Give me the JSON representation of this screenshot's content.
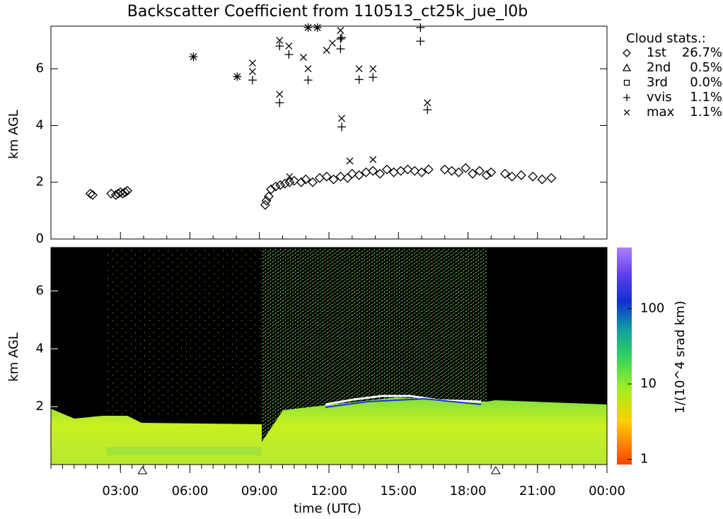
{
  "chart_data": [
    {
      "type": "scatter",
      "title": "Backscatter Coefficient from 110513_ct25k_jue_l0b",
      "ylabel": "km AGL",
      "xlim": [
        0,
        24
      ],
      "ylim": [
        0,
        7.5
      ],
      "yticks": [
        0,
        2,
        4,
        6
      ],
      "legend_title": "Cloud stats.:",
      "legend": "right",
      "series": [
        {
          "name": "1st",
          "stat": "26.7%",
          "marker": "diamond",
          "color": "#000000",
          "x": [
            1.7,
            1.8,
            2.6,
            2.8,
            2.9,
            3.0,
            3.1,
            3.2,
            3.3,
            9.25,
            9.3,
            9.4,
            9.5,
            9.7,
            9.9,
            10.1,
            10.3,
            10.5,
            10.8,
            11.0,
            11.3,
            11.6,
            11.9,
            12.2,
            12.5,
            12.8,
            13.0,
            13.3,
            13.6,
            13.9,
            14.2,
            14.5,
            14.8,
            15.1,
            15.4,
            15.7,
            16.0,
            16.3,
            17.0,
            17.3,
            17.6,
            17.9,
            18.2,
            18.5,
            18.8,
            19.0,
            19.6,
            19.9,
            20.3,
            20.8,
            21.2,
            21.6
          ],
          "values": [
            1.6,
            1.55,
            1.6,
            1.55,
            1.6,
            1.65,
            1.6,
            1.65,
            1.7,
            1.2,
            1.35,
            1.5,
            1.75,
            1.85,
            1.9,
            1.95,
            2.0,
            2.05,
            2.0,
            2.1,
            2.0,
            2.15,
            2.2,
            2.1,
            2.2,
            2.15,
            2.3,
            2.25,
            2.35,
            2.4,
            2.3,
            2.45,
            2.35,
            2.4,
            2.45,
            2.4,
            2.35,
            2.45,
            2.45,
            2.4,
            2.35,
            2.5,
            2.3,
            2.4,
            2.25,
            2.35,
            2.3,
            2.2,
            2.25,
            2.2,
            2.1,
            2.15
          ]
        },
        {
          "name": "2nd",
          "stat": "0.5%",
          "marker": "triangle",
          "color": "#000000",
          "x": [],
          "values": []
        },
        {
          "name": "3rd",
          "stat": "0.0%",
          "marker": "square",
          "color": "#000000",
          "x": [],
          "values": []
        },
        {
          "name": "vvis",
          "stat": "1.1%",
          "marker": "plus",
          "color": "#000000",
          "x": [
            6.15,
            8.04,
            8.7,
            9.87,
            9.87,
            10.27,
            11.1,
            11.1,
            11.5,
            12.5,
            12.5,
            12.55,
            12.55,
            13.3,
            13.9,
            15.95,
            15.95,
            16.25
          ],
          "values": [
            6.42,
            5.72,
            5.6,
            6.8,
            4.8,
            6.5,
            7.45,
            5.6,
            7.45,
            7.05,
            6.7,
            7.1,
            3.95,
            5.62,
            5.7,
            7.45,
            6.97,
            4.55
          ]
        },
        {
          "name": "max",
          "stat": "1.1%",
          "marker": "cross",
          "color": "#000000",
          "x": [
            6.15,
            8.04,
            8.7,
            8.7,
            9.87,
            9.87,
            10.27,
            10.3,
            10.9,
            11.1,
            11.1,
            11.5,
            11.9,
            12.15,
            12.5,
            12.55,
            12.9,
            13.3,
            13.9,
            13.9,
            16.25
          ],
          "values": [
            6.42,
            5.72,
            6.2,
            5.9,
            7.0,
            5.1,
            6.8,
            2.2,
            6.4,
            7.45,
            6.0,
            7.45,
            6.65,
            6.9,
            7.35,
            4.25,
            2.75,
            6.0,
            6.0,
            2.8,
            4.8
          ]
        }
      ]
    },
    {
      "type": "heatmap",
      "ylabel": "km AGL",
      "xlabel": "time (UTC)",
      "xlim": [
        0,
        24
      ],
      "xticks": [
        {
          "value": 3,
          "label": "03:00"
        },
        {
          "value": 6,
          "label": "06:00"
        },
        {
          "value": 9,
          "label": "09:00"
        },
        {
          "value": 12,
          "label": "12:00"
        },
        {
          "value": 15,
          "label": "15:00"
        },
        {
          "value": 18,
          "label": "18:00"
        },
        {
          "value": 21,
          "label": "21:00"
        },
        {
          "value": 24,
          "label": "00:00"
        }
      ],
      "ylim": [
        0,
        7.5
      ],
      "yticks": [
        2,
        4,
        6
      ],
      "markers_x": [
        3.95,
        19.2
      ],
      "colorbar": {
        "label": "1/(10^4 srad km)",
        "log": true,
        "lim": [
          0.85,
          650
        ],
        "ticks": [
          1,
          10,
          100
        ]
      }
    }
  ]
}
